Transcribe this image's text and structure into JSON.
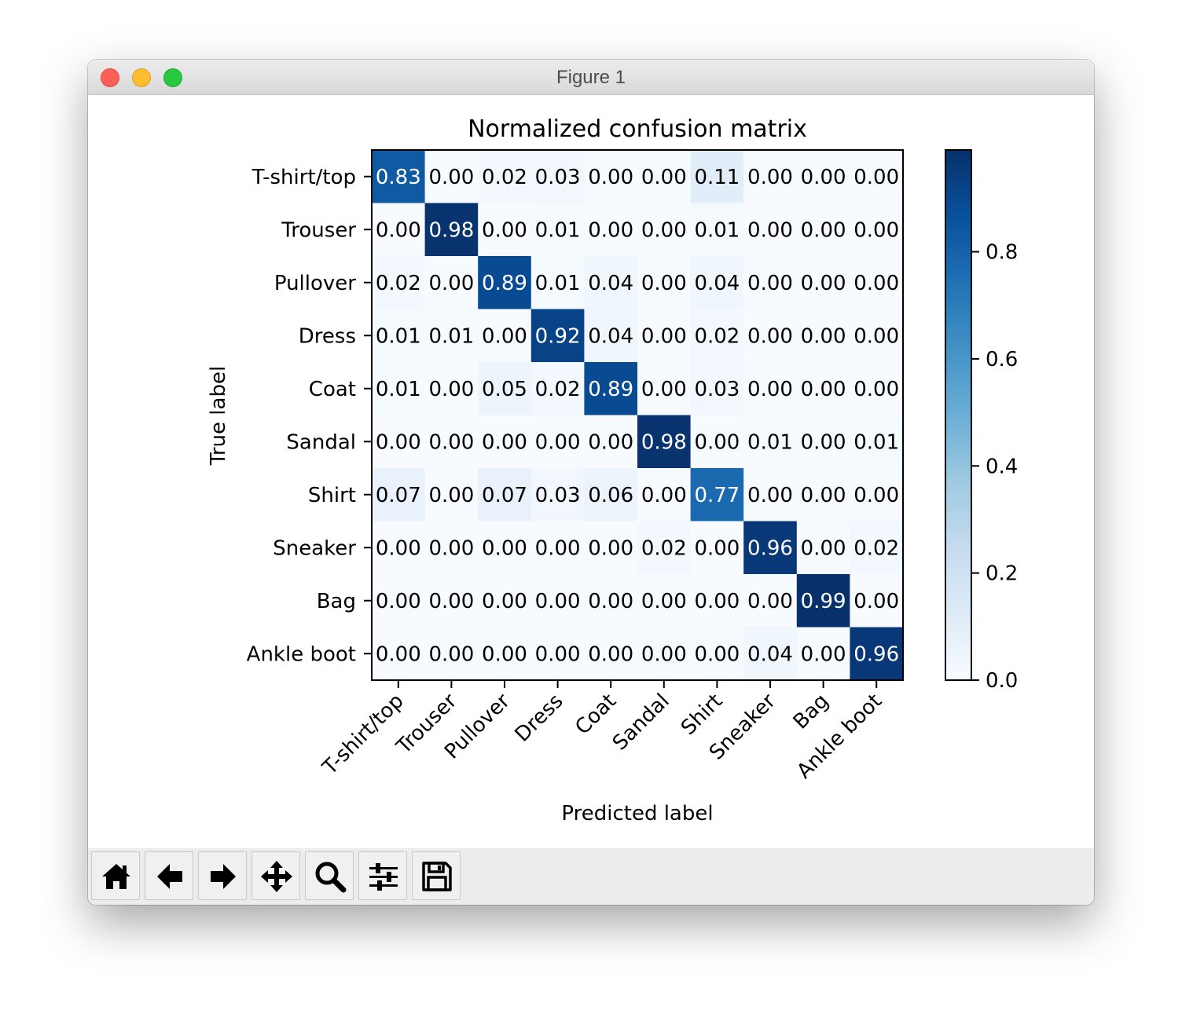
{
  "window": {
    "title": "Figure 1"
  },
  "toolbar": {
    "buttons": [
      {
        "name": "home",
        "icon": "home-icon"
      },
      {
        "name": "back",
        "icon": "arrow-left-icon"
      },
      {
        "name": "forward",
        "icon": "arrow-right-icon"
      },
      {
        "name": "pan",
        "icon": "move-icon"
      },
      {
        "name": "zoom",
        "icon": "magnifier-icon"
      },
      {
        "name": "configure-subplots",
        "icon": "sliders-icon"
      },
      {
        "name": "save",
        "icon": "floppy-disk-icon"
      }
    ]
  },
  "chart_data": {
    "type": "heatmap",
    "title": "Normalized confusion matrix",
    "xlabel": "Predicted label",
    "ylabel": "True label",
    "x_categories": [
      "T-shirt/top",
      "Trouser",
      "Pullover",
      "Dress",
      "Coat",
      "Sandal",
      "Shirt",
      "Sneaker",
      "Bag",
      "Ankle boot"
    ],
    "y_categories": [
      "T-shirt/top",
      "Trouser",
      "Pullover",
      "Dress",
      "Coat",
      "Sandal",
      "Shirt",
      "Sneaker",
      "Bag",
      "Ankle boot"
    ],
    "matrix": [
      [
        0.83,
        0.0,
        0.02,
        0.03,
        0.0,
        0.0,
        0.11,
        0.0,
        0.0,
        0.0
      ],
      [
        0.0,
        0.98,
        0.0,
        0.01,
        0.0,
        0.0,
        0.01,
        0.0,
        0.0,
        0.0
      ],
      [
        0.02,
        0.0,
        0.89,
        0.01,
        0.04,
        0.0,
        0.04,
        0.0,
        0.0,
        0.0
      ],
      [
        0.01,
        0.01,
        0.0,
        0.92,
        0.04,
        0.0,
        0.02,
        0.0,
        0.0,
        0.0
      ],
      [
        0.01,
        0.0,
        0.05,
        0.02,
        0.89,
        0.0,
        0.03,
        0.0,
        0.0,
        0.0
      ],
      [
        0.0,
        0.0,
        0.0,
        0.0,
        0.0,
        0.98,
        0.0,
        0.01,
        0.0,
        0.01
      ],
      [
        0.07,
        0.0,
        0.07,
        0.03,
        0.06,
        0.0,
        0.77,
        0.0,
        0.0,
        0.0
      ],
      [
        0.0,
        0.0,
        0.0,
        0.0,
        0.0,
        0.02,
        0.0,
        0.96,
        0.0,
        0.02
      ],
      [
        0.0,
        0.0,
        0.0,
        0.0,
        0.0,
        0.0,
        0.0,
        0.0,
        0.99,
        0.0
      ],
      [
        0.0,
        0.0,
        0.0,
        0.0,
        0.0,
        0.0,
        0.0,
        0.04,
        0.0,
        0.96
      ]
    ],
    "colormap": "Blues",
    "colorbar": {
      "range": [
        0.0,
        0.99
      ],
      "ticks": [
        0.0,
        0.2,
        0.4,
        0.6,
        0.8
      ],
      "tick_labels": [
        "0.0",
        "0.2",
        "0.4",
        "0.6",
        "0.8"
      ]
    },
    "text_threshold": 0.495,
    "text_color_dark": "#000000",
    "text_color_light": "#ffffff"
  }
}
